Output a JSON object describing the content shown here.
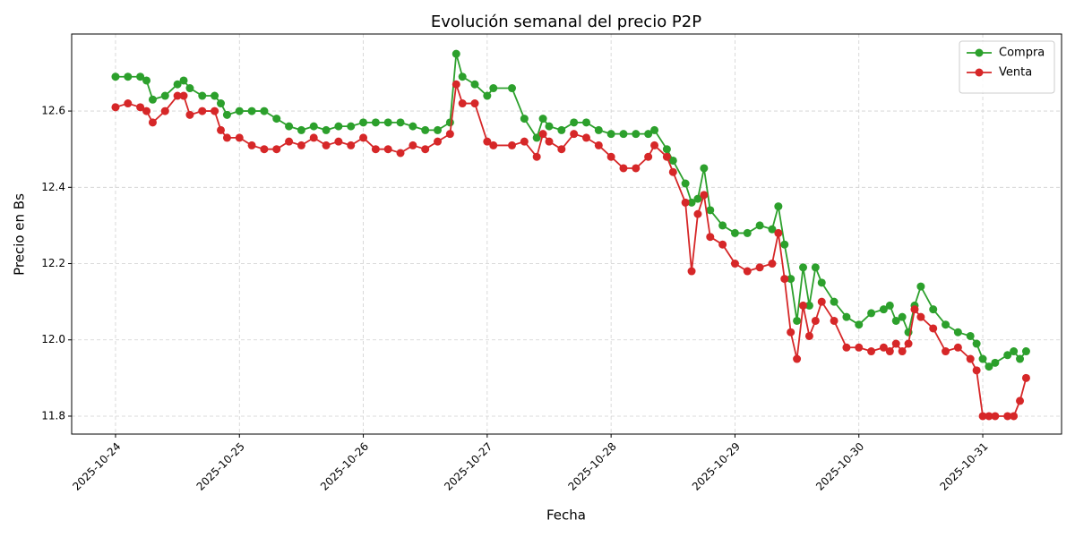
{
  "chart_data": {
    "type": "line",
    "title": "Evolución semanal del precio P2P",
    "xlabel": "Fecha",
    "ylabel": "Precio en Bs",
    "x": [
      0,
      0.1,
      0.2,
      0.25,
      0.3,
      0.4,
      0.5,
      0.55,
      0.6,
      0.7,
      0.8,
      0.85,
      0.9,
      1.0,
      1.1,
      1.2,
      1.3,
      1.4,
      1.5,
      1.6,
      1.7,
      1.8,
      1.9,
      2.0,
      2.1,
      2.2,
      2.3,
      2.4,
      2.5,
      2.6,
      2.7,
      2.75,
      2.8,
      2.9,
      3.0,
      3.05,
      3.2,
      3.3,
      3.4,
      3.45,
      3.5,
      3.6,
      3.7,
      3.8,
      3.9,
      4.0,
      4.1,
      4.2,
      4.3,
      4.35,
      4.45,
      4.5,
      4.6,
      4.65,
      4.7,
      4.75,
      4.8,
      4.9,
      5.0,
      5.1,
      5.2,
      5.3,
      5.35,
      5.4,
      5.45,
      5.5,
      5.55,
      5.6,
      5.65,
      5.7,
      5.8,
      5.9,
      6.0,
      6.1,
      6.2,
      6.25,
      6.3,
      6.35,
      6.4,
      6.45,
      6.5,
      6.6,
      6.7,
      6.8,
      6.9,
      6.95,
      7.0,
      7.05,
      7.1,
      7.2,
      7.25,
      7.3,
      7.35
    ],
    "series": [
      {
        "name": "Compra",
        "color": "#2ca02c",
        "values": [
          12.69,
          12.69,
          12.69,
          12.68,
          12.63,
          12.64,
          12.67,
          12.68,
          12.66,
          12.64,
          12.64,
          12.62,
          12.59,
          12.6,
          12.6,
          12.6,
          12.58,
          12.56,
          12.55,
          12.56,
          12.55,
          12.56,
          12.56,
          12.57,
          12.57,
          12.57,
          12.57,
          12.56,
          12.55,
          12.55,
          12.57,
          12.75,
          12.69,
          12.67,
          12.64,
          12.66,
          12.66,
          12.58,
          12.53,
          12.58,
          12.56,
          12.55,
          12.57,
          12.57,
          12.55,
          12.54,
          12.54,
          12.54,
          12.54,
          12.55,
          12.5,
          12.47,
          12.41,
          12.36,
          12.37,
          12.45,
          12.34,
          12.3,
          12.28,
          12.28,
          12.3,
          12.29,
          12.35,
          12.25,
          12.16,
          12.05,
          12.19,
          12.09,
          12.19,
          12.15,
          12.1,
          12.06,
          12.04,
          12.07,
          12.08,
          12.09,
          12.05,
          12.06,
          12.02,
          12.09,
          12.14,
          12.08,
          12.04,
          12.02,
          12.01,
          11.99,
          11.95,
          11.93,
          11.94,
          11.96,
          11.97,
          11.95,
          11.97
        ]
      },
      {
        "name": "Venta",
        "color": "#d62728",
        "values": [
          12.61,
          12.62,
          12.61,
          12.6,
          12.57,
          12.6,
          12.64,
          12.64,
          12.59,
          12.6,
          12.6,
          12.55,
          12.53,
          12.53,
          12.51,
          12.5,
          12.5,
          12.52,
          12.51,
          12.53,
          12.51,
          12.52,
          12.51,
          12.53,
          12.5,
          12.5,
          12.49,
          12.51,
          12.5,
          12.52,
          12.54,
          12.67,
          12.62,
          12.62,
          12.52,
          12.51,
          12.51,
          12.52,
          12.48,
          12.54,
          12.52,
          12.5,
          12.54,
          12.53,
          12.51,
          12.48,
          12.45,
          12.45,
          12.48,
          12.51,
          12.48,
          12.44,
          12.36,
          12.18,
          12.33,
          12.38,
          12.27,
          12.25,
          12.2,
          12.18,
          12.19,
          12.2,
          12.28,
          12.16,
          12.02,
          11.95,
          12.09,
          12.01,
          12.05,
          12.1,
          12.05,
          11.98,
          11.98,
          11.97,
          11.98,
          11.97,
          11.99,
          11.97,
          11.99,
          12.08,
          12.06,
          12.03,
          11.97,
          11.98,
          11.95,
          11.92,
          11.8,
          11.8,
          11.8,
          11.8,
          11.8,
          11.84,
          11.9
        ]
      }
    ],
    "xlim": [
      -0.354,
      7.636
    ],
    "xticks": [
      {
        "value": 0,
        "label": "2025-10-24"
      },
      {
        "value": 1,
        "label": "2025-10-25"
      },
      {
        "value": 2,
        "label": "2025-10-26"
      },
      {
        "value": 3,
        "label": "2025-10-27"
      },
      {
        "value": 4,
        "label": "2025-10-28"
      },
      {
        "value": 5,
        "label": "2025-10-29"
      },
      {
        "value": 6,
        "label": "2025-10-30"
      },
      {
        "value": 7,
        "label": "2025-10-31"
      }
    ],
    "ylim": [
      11.753,
      12.802
    ],
    "yticks": [
      11.8,
      {
        "value": 12,
        "label": "12.0"
      },
      12.2,
      12.4,
      12.6
    ],
    "grid": true,
    "legend": "upper right"
  }
}
